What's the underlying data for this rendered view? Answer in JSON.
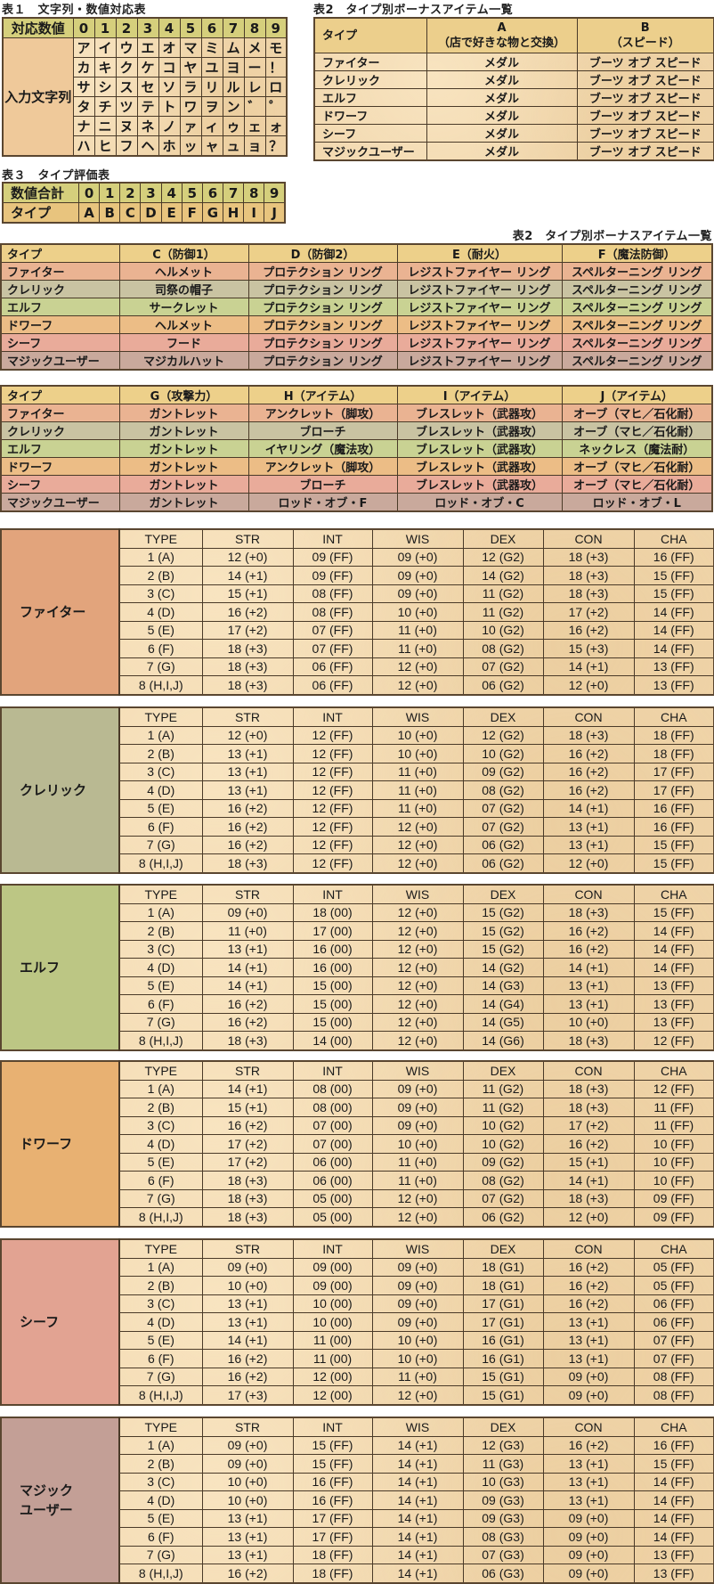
{
  "table1": {
    "title": "表１　文字列・数値対応表",
    "header_label": "対応数値",
    "digits": [
      "0",
      "1",
      "2",
      "3",
      "4",
      "5",
      "6",
      "7",
      "8",
      "9"
    ],
    "row_label": "入力文字列",
    "rows": [
      [
        "ア",
        "イ",
        "ウ",
        "エ",
        "オ",
        "マ",
        "ミ",
        "ム",
        "メ",
        "モ"
      ],
      [
        "カ",
        "キ",
        "ク",
        "ケ",
        "コ",
        "ヤ",
        "ユ",
        "ヨ",
        "ー",
        "！"
      ],
      [
        "サ",
        "シ",
        "ス",
        "セ",
        "ソ",
        "ラ",
        "リ",
        "ル",
        "レ",
        "ロ"
      ],
      [
        "タ",
        "チ",
        "ツ",
        "テ",
        "ト",
        "ワ",
        "ヲ",
        "ン",
        "゛",
        "゜"
      ],
      [
        "ナ",
        "ニ",
        "ヌ",
        "ネ",
        "ノ",
        "ァ",
        "ィ",
        "ゥ",
        "ェ",
        "ォ"
      ],
      [
        "ハ",
        "ヒ",
        "フ",
        "ヘ",
        "ホ",
        "ッ",
        "ャ",
        "ュ",
        "ョ",
        "？"
      ]
    ]
  },
  "table3": {
    "title": "表３　タイプ評価表",
    "rows": [
      [
        "数値合計",
        "0",
        "1",
        "2",
        "3",
        "4",
        "5",
        "6",
        "7",
        "8",
        "9"
      ],
      [
        "タイプ",
        "A",
        "B",
        "C",
        "D",
        "E",
        "F",
        "G",
        "H",
        "I",
        "J"
      ]
    ]
  },
  "table2a": {
    "title": "表2　タイプ別ボーナスアイテム一覧",
    "header": [
      "タイプ",
      "A\n（店で好きな物と交換）",
      "B\n（スピード）"
    ],
    "rows": [
      [
        "ファイター",
        "メダル",
        "ブーツ オブ スピード"
      ],
      [
        "クレリック",
        "メダル",
        "ブーツ オブ スピード"
      ],
      [
        "エルフ",
        "メダル",
        "ブーツ オブ スピード"
      ],
      [
        "ドワーフ",
        "メダル",
        "ブーツ オブ スピード"
      ],
      [
        "シーフ",
        "メダル",
        "ブーツ オブ スピード"
      ],
      [
        "マジックユーザー",
        "メダル",
        "ブーツ オブ スピード"
      ]
    ]
  },
  "table2b": {
    "title": "表2　タイプ別ボーナスアイテム一覧",
    "header": [
      "タイプ",
      "C（防御1）",
      "D（防御2）",
      "E（耐火）",
      "F（魔法防御）"
    ],
    "rows": [
      [
        "ファイター",
        "ヘルメット",
        "プロテクション リング",
        "レジストファイヤー リング",
        "スペルターニング リング"
      ],
      [
        "クレリック",
        "司祭の帽子",
        "プロテクション リング",
        "レジストファイヤー リング",
        "スペルターニング リング"
      ],
      [
        "エルフ",
        "サークレット",
        "プロテクション リング",
        "レジストファイヤー リング",
        "スペルターニング リング"
      ],
      [
        "ドワーフ",
        "ヘルメット",
        "プロテクション リング",
        "レジストファイヤー リング",
        "スペルターニング リング"
      ],
      [
        "シーフ",
        "フード",
        "プロテクション リング",
        "レジストファイヤー リング",
        "スペルターニング リング"
      ],
      [
        "マジックユーザー",
        "マジカルハット",
        "プロテクション リング",
        "レジストファイヤー リング",
        "スペルターニング リング"
      ]
    ]
  },
  "table2c": {
    "header": [
      "タイプ",
      "G（攻撃力）",
      "H（アイテム）",
      "I（アイテム）",
      "J（アイテム）"
    ],
    "rows": [
      [
        "ファイター",
        "ガントレット",
        "アンクレット（脚攻）",
        "ブレスレット（武器攻）",
        "オーブ（マヒ／石化耐）"
      ],
      [
        "クレリック",
        "ガントレット",
        "ブローチ",
        "ブレスレット（武器攻）",
        "オーブ（マヒ／石化耐）"
      ],
      [
        "エルフ",
        "ガントレット",
        "イヤリング（魔法攻）",
        "ブレスレット（武器攻）",
        "ネックレス（魔法耐）"
      ],
      [
        "ドワーフ",
        "ガントレット",
        "アンクレット（脚攻）",
        "ブレスレット（武器攻）",
        "オーブ（マヒ／石化耐）"
      ],
      [
        "シーフ",
        "ガントレット",
        "ブローチ",
        "ブレスレット（武器攻）",
        "オーブ（マヒ／石化耐）"
      ],
      [
        "マジックユーザー",
        "ガントレット",
        "ロッド・オブ・F",
        "ロッド・オブ・C",
        "ロッド・オブ・L"
      ]
    ]
  },
  "colors": {
    "row_colors": [
      "#eab392",
      "#c9c3a2",
      "#c9d293",
      "#ecbd86",
      "#e9ab9a",
      "#c9a99c"
    ],
    "side_colors": [
      "#e2a47c",
      "#b9b992",
      "#bcc684",
      "#e8b172",
      "#e2a392",
      "#c39f96"
    ],
    "header_gold": "#edd08a"
  },
  "stat_header": [
    "TYPE",
    "STR",
    "INT",
    "WIS",
    "DEX",
    "CON",
    "CHA"
  ],
  "stat_tables": [
    {
      "class_name": "ファイター",
      "rows": [
        [
          "1 (A)",
          "12 (+0)",
          "09 (FF)",
          "09 (+0)",
          "12 (G2)",
          "18 (+3)",
          "16 (FF)"
        ],
        [
          "2 (B)",
          "14 (+1)",
          "09 (FF)",
          "09 (+0)",
          "14 (G2)",
          "18 (+3)",
          "15 (FF)"
        ],
        [
          "3 (C)",
          "15 (+1)",
          "08 (FF)",
          "09 (+0)",
          "11 (G2)",
          "18 (+3)",
          "15 (FF)"
        ],
        [
          "4 (D)",
          "16 (+2)",
          "08 (FF)",
          "10 (+0)",
          "11 (G2)",
          "17 (+2)",
          "14 (FF)"
        ],
        [
          "5 (E)",
          "17 (+2)",
          "07 (FF)",
          "11 (+0)",
          "10 (G2)",
          "16 (+2)",
          "14 (FF)"
        ],
        [
          "6 (F)",
          "18 (+3)",
          "07 (FF)",
          "11 (+0)",
          "08 (G2)",
          "15 (+3)",
          "14 (FF)"
        ],
        [
          "7 (G)",
          "18 (+3)",
          "06 (FF)",
          "12 (+0)",
          "07 (G2)",
          "14 (+1)",
          "13 (FF)"
        ],
        [
          "8 (H,I,J)",
          "18 (+3)",
          "06 (FF)",
          "12 (+0)",
          "06 (G2)",
          "12 (+0)",
          "13 (FF)"
        ]
      ]
    },
    {
      "class_name": "クレリック",
      "rows": [
        [
          "1 (A)",
          "12 (+0)",
          "12 (FF)",
          "10 (+0)",
          "12 (G2)",
          "18 (+3)",
          "18 (FF)"
        ],
        [
          "2 (B)",
          "13 (+1)",
          "12 (FF)",
          "10 (+0)",
          "10 (G2)",
          "16 (+2)",
          "18 (FF)"
        ],
        [
          "3 (C)",
          "13 (+1)",
          "12 (FF)",
          "11 (+0)",
          "09 (G2)",
          "16 (+2)",
          "17 (FF)"
        ],
        [
          "4 (D)",
          "13 (+1)",
          "12 (FF)",
          "11 (+0)",
          "08 (G2)",
          "16 (+2)",
          "17 (FF)"
        ],
        [
          "5 (E)",
          "16 (+2)",
          "12 (FF)",
          "11 (+0)",
          "07 (G2)",
          "14 (+1)",
          "16 (FF)"
        ],
        [
          "6 (F)",
          "16 (+2)",
          "12 (FF)",
          "12 (+0)",
          "07 (G2)",
          "13 (+1)",
          "16 (FF)"
        ],
        [
          "7 (G)",
          "16 (+2)",
          "12 (FF)",
          "12 (+0)",
          "06 (G2)",
          "13 (+1)",
          "15 (FF)"
        ],
        [
          "8 (H,I,J)",
          "18 (+3)",
          "12 (FF)",
          "12 (+0)",
          "06 (G2)",
          "12 (+0)",
          "15 (FF)"
        ]
      ]
    },
    {
      "class_name": "エルフ",
      "rows": [
        [
          "1 (A)",
          "09 (+0)",
          "18 (00)",
          "12 (+0)",
          "15 (G2)",
          "18 (+3)",
          "15 (FF)"
        ],
        [
          "2 (B)",
          "11 (+0)",
          "17 (00)",
          "12 (+0)",
          "15 (G2)",
          "16 (+2)",
          "14 (FF)"
        ],
        [
          "3 (C)",
          "13 (+1)",
          "16 (00)",
          "12 (+0)",
          "15 (G2)",
          "16 (+2)",
          "14 (FF)"
        ],
        [
          "4 (D)",
          "14 (+1)",
          "16 (00)",
          "12 (+0)",
          "14 (G2)",
          "14 (+1)",
          "14 (FF)"
        ],
        [
          "5 (E)",
          "14 (+1)",
          "15 (00)",
          "12 (+0)",
          "14 (G3)",
          "13 (+1)",
          "13 (FF)"
        ],
        [
          "6 (F)",
          "16 (+2)",
          "15 (00)",
          "12 (+0)",
          "14 (G4)",
          "13 (+1)",
          "13 (FF)"
        ],
        [
          "7 (G)",
          "16 (+2)",
          "15 (00)",
          "12 (+0)",
          "14 (G5)",
          "10 (+0)",
          "13 (FF)"
        ],
        [
          "8 (H,I,J)",
          "18 (+3)",
          "14 (00)",
          "12 (+0)",
          "14 (G6)",
          "18 (+3)",
          "12 (FF)"
        ]
      ]
    },
    {
      "class_name": "ドワーフ",
      "rows": [
        [
          "1 (A)",
          "14 (+1)",
          "08 (00)",
          "09 (+0)",
          "11 (G2)",
          "18 (+3)",
          "12 (FF)"
        ],
        [
          "2 (B)",
          "15 (+1)",
          "08 (00)",
          "09 (+0)",
          "11 (G2)",
          "18 (+3)",
          "11 (FF)"
        ],
        [
          "3 (C)",
          "16 (+2)",
          "07 (00)",
          "09 (+0)",
          "10 (G2)",
          "17 (+2)",
          "11 (FF)"
        ],
        [
          "4 (D)",
          "17 (+2)",
          "07 (00)",
          "10 (+0)",
          "10 (G2)",
          "16 (+2)",
          "10 (FF)"
        ],
        [
          "5 (E)",
          "17 (+2)",
          "06 (00)",
          "11 (+0)",
          "09 (G2)",
          "15 (+1)",
          "10 (FF)"
        ],
        [
          "6 (F)",
          "18 (+3)",
          "06 (00)",
          "11 (+0)",
          "08 (G2)",
          "14 (+1)",
          "10 (FF)"
        ],
        [
          "7 (G)",
          "18 (+3)",
          "05 (00)",
          "12 (+0)",
          "07 (G2)",
          "18 (+3)",
          "09 (FF)"
        ],
        [
          "8 (H,I,J)",
          "18 (+3)",
          "05 (00)",
          "12 (+0)",
          "06 (G2)",
          "12 (+0)",
          "09 (FF)"
        ]
      ]
    },
    {
      "class_name": "シーフ",
      "rows": [
        [
          "1 (A)",
          "09 (+0)",
          "09 (00)",
          "09 (+0)",
          "18 (G1)",
          "16 (+2)",
          "05 (FF)"
        ],
        [
          "2 (B)",
          "10 (+0)",
          "09 (00)",
          "09 (+0)",
          "18 (G1)",
          "16 (+2)",
          "05 (FF)"
        ],
        [
          "3 (C)",
          "13 (+1)",
          "10 (00)",
          "09 (+0)",
          "17 (G1)",
          "16 (+2)",
          "06 (FF)"
        ],
        [
          "4 (D)",
          "13 (+1)",
          "10 (00)",
          "09 (+0)",
          "17 (G1)",
          "13 (+1)",
          "06 (FF)"
        ],
        [
          "5 (E)",
          "14 (+1)",
          "11 (00)",
          "10 (+0)",
          "16 (G1)",
          "13 (+1)",
          "07 (FF)"
        ],
        [
          "6 (F)",
          "16 (+2)",
          "11 (00)",
          "10 (+0)",
          "16 (G1)",
          "13 (+1)",
          "07 (FF)"
        ],
        [
          "7 (G)",
          "16 (+2)",
          "12 (00)",
          "11 (+0)",
          "15 (G1)",
          "09 (+0)",
          "08 (FF)"
        ],
        [
          "8 (H,I,J)",
          "17 (+3)",
          "12 (00)",
          "12 (+0)",
          "15 (G1)",
          "09 (+0)",
          "08 (FF)"
        ]
      ]
    },
    {
      "class_name": "マジック\nユーザー",
      "rows": [
        [
          "1 (A)",
          "09 (+0)",
          "15 (FF)",
          "14 (+1)",
          "12 (G3)",
          "16 (+2)",
          "16 (FF)"
        ],
        [
          "2 (B)",
          "09 (+0)",
          "15 (FF)",
          "14 (+1)",
          "11 (G3)",
          "13 (+1)",
          "15 (FF)"
        ],
        [
          "3 (C)",
          "10 (+0)",
          "16 (FF)",
          "14 (+1)",
          "10 (G3)",
          "13 (+1)",
          "14 (FF)"
        ],
        [
          "4 (D)",
          "10 (+0)",
          "16 (FF)",
          "14 (+1)",
          "09 (G3)",
          "13 (+1)",
          "14 (FF)"
        ],
        [
          "5 (E)",
          "13 (+1)",
          "17 (FF)",
          "14 (+1)",
          "09 (G3)",
          "09 (+0)",
          "14 (FF)"
        ],
        [
          "6 (F)",
          "13 (+1)",
          "17 (FF)",
          "14 (+1)",
          "08 (G3)",
          "09 (+0)",
          "14 (FF)"
        ],
        [
          "7 (G)",
          "13 (+1)",
          "18 (FF)",
          "14 (+1)",
          "07 (G3)",
          "09 (+0)",
          "13 (FF)"
        ],
        [
          "8 (H,I,J)",
          "16 (+2)",
          "18 (FF)",
          "14 (+1)",
          "06 (G3)",
          "09 (+0)",
          "13 (FF)"
        ]
      ]
    }
  ]
}
